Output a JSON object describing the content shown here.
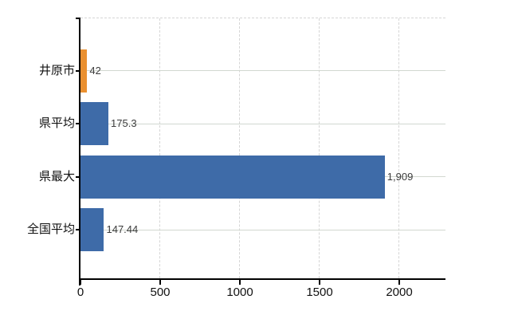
{
  "chart_data": {
    "type": "bar",
    "orientation": "horizontal",
    "title": "",
    "xlabel": "",
    "ylabel": "",
    "categories": [
      "井原市",
      "県平均",
      "県最大",
      "全国平均"
    ],
    "values": [
      42,
      175.3,
      1909,
      147.44
    ],
    "value_labels": [
      "42",
      "175.3",
      "1,909",
      "147.44"
    ],
    "highlight_index": 0,
    "x_ticks": [
      0,
      500,
      1000,
      1500,
      2000
    ],
    "x_tick_labels": [
      "0",
      "500",
      "1000",
      "1500",
      "2000"
    ],
    "xlim": [
      0,
      2290
    ],
    "grid": {
      "vertical": "dashed",
      "horizontal": "solid",
      "top_border": "dashed"
    },
    "legend": {
      "visible": false
    },
    "colors": {
      "bar_colors": [
        "#EA9030",
        "#3E6BA8",
        "#3E6BA8",
        "#3E6BA8"
      ],
      "highlight_bar": "#EA9030",
      "default_bar": "#3E6BA8",
      "vertical_grid": "#D5D5D5",
      "horizontal_grid": "#D2D8D0",
      "axis": "#000000",
      "category_text": "#111111",
      "tick_text": "#111111",
      "value_text": "#3C3C3C",
      "background": "#FFFFFF"
    }
  }
}
